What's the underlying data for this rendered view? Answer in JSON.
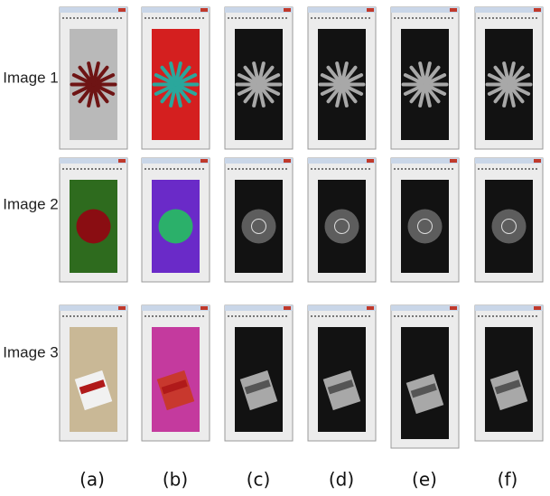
{
  "row_labels": [
    "Image 1",
    "Image 2",
    "Image 3"
  ],
  "column_labels": [
    "(a)",
    "(b)",
    "(c)",
    "(d)",
    "(e)",
    "(f)"
  ]
}
